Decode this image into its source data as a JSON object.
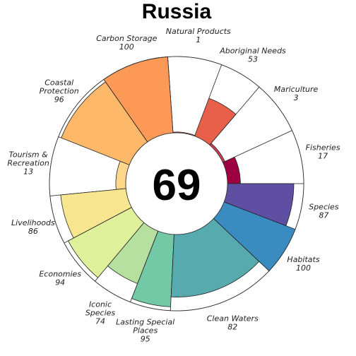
{
  "chart_data": {
    "type": "flower",
    "title": "Russia",
    "center_score": "69",
    "max_value": 100,
    "segments": [
      {
        "name": "Fisheries",
        "label_lines": [
          "Fisheries"
        ],
        "value": 17,
        "weight": 1,
        "color": "#9E0142"
      },
      {
        "name": "Mariculture",
        "label_lines": [
          "Mariculture"
        ],
        "value": 3,
        "weight": 1,
        "color": "#D53E4F"
      },
      {
        "name": "Aboriginal Needs",
        "label_lines": [
          "Aboriginal Needs"
        ],
        "value": 53,
        "weight": 0.8,
        "color": "#E8604A"
      },
      {
        "name": "Natural Products",
        "label_lines": [
          "Natural Products"
        ],
        "value": 1,
        "weight": 1,
        "color": "#F46D43"
      },
      {
        "name": "Carbon Storage",
        "label_lines": [
          "Carbon Storage"
        ],
        "value": 100,
        "weight": 1.25,
        "color": "#FC9957"
      },
      {
        "name": "Coastal Protection",
        "label_lines": [
          "Coastal",
          "Protection"
        ],
        "value": 96,
        "weight": 1.35,
        "color": "#FDB86A"
      },
      {
        "name": "Tourism & Recreation",
        "label_lines": [
          "Tourism &",
          "Recreation"
        ],
        "value": 13,
        "weight": 1.1,
        "color": "#FDD78A"
      },
      {
        "name": "Livelihoods",
        "label_lines": [
          "Livelihoods"
        ],
        "value": 86,
        "weight": 0.9,
        "color": "#F7E590"
      },
      {
        "name": "Economies",
        "label_lines": [
          "Economies"
        ],
        "value": 94,
        "weight": 0.9,
        "color": "#DEF099"
      },
      {
        "name": "Iconic Species",
        "label_lines": [
          "Iconic",
          "Species"
        ],
        "value": 74,
        "weight": 0.75,
        "color": "#B6E0A0"
      },
      {
        "name": "Lasting Special Places",
        "label_lines": [
          "Lasting Special",
          "Places"
        ],
        "value": 95,
        "weight": 0.75,
        "color": "#73C8A5"
      },
      {
        "name": "Clean Waters",
        "label_lines": [
          "Clean Waters"
        ],
        "value": 82,
        "weight": 2,
        "color": "#57AAAD"
      },
      {
        "name": "Habitats",
        "label_lines": [
          "Habitats"
        ],
        "value": 100,
        "weight": 0.9,
        "color": "#3A8BC0"
      },
      {
        "name": "Species",
        "label_lines": [
          "Species"
        ],
        "value": 87,
        "weight": 0.85,
        "color": "#5E4FA2"
      }
    ]
  }
}
